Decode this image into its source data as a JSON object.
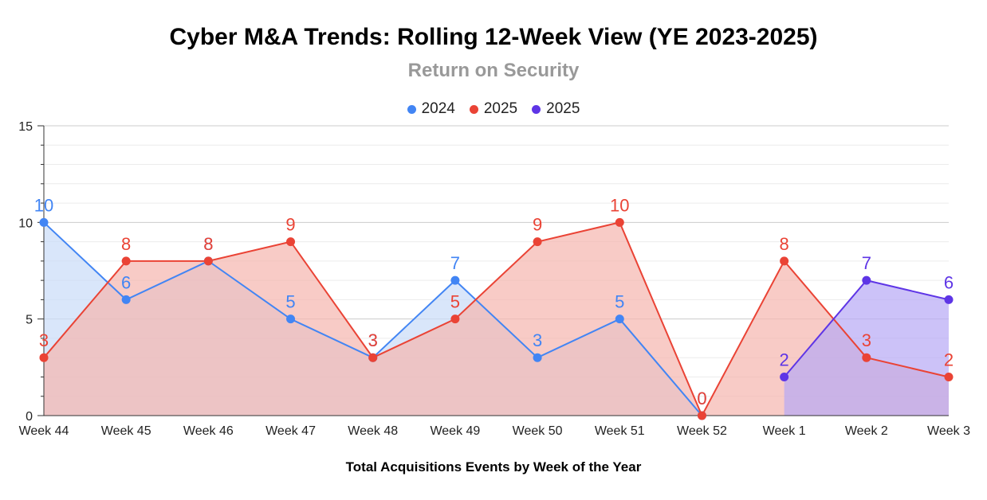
{
  "chart_data": {
    "type": "area",
    "title": "Cyber M&A Trends: Rolling 12-Week View (YE 2023-2025)",
    "subtitle": "Return on Security",
    "xlabel": "Total Acquisitions Events by Week of the Year",
    "ylabel": "",
    "ylim": [
      0,
      15
    ],
    "yticks": [
      "0",
      "5",
      "10",
      "15"
    ],
    "grid": true,
    "legend_position": "top",
    "categories": [
      "Week 44",
      "Week 45",
      "Week 46",
      "Week 47",
      "Week 48",
      "Week 49",
      "Week 50",
      "Week 51",
      "Week 52",
      "Week 1",
      "Week 2",
      "Week 3"
    ],
    "series": [
      {
        "name": "2024",
        "color": "#4285f4",
        "fill": "#c9dbf8",
        "values": [
          10,
          6,
          8,
          5,
          3,
          7,
          3,
          5,
          0,
          null,
          null,
          null
        ]
      },
      {
        "name": "2025",
        "color": "#ea4335",
        "fill": "#f5b5ae",
        "values": [
          3,
          8,
          8,
          9,
          3,
          5,
          9,
          10,
          0,
          8,
          3,
          2
        ]
      },
      {
        "name": "2025",
        "color": "#5e35e6",
        "fill": "#b7a8f5",
        "values": [
          null,
          null,
          null,
          null,
          null,
          null,
          null,
          null,
          null,
          2,
          7,
          6
        ]
      }
    ]
  }
}
